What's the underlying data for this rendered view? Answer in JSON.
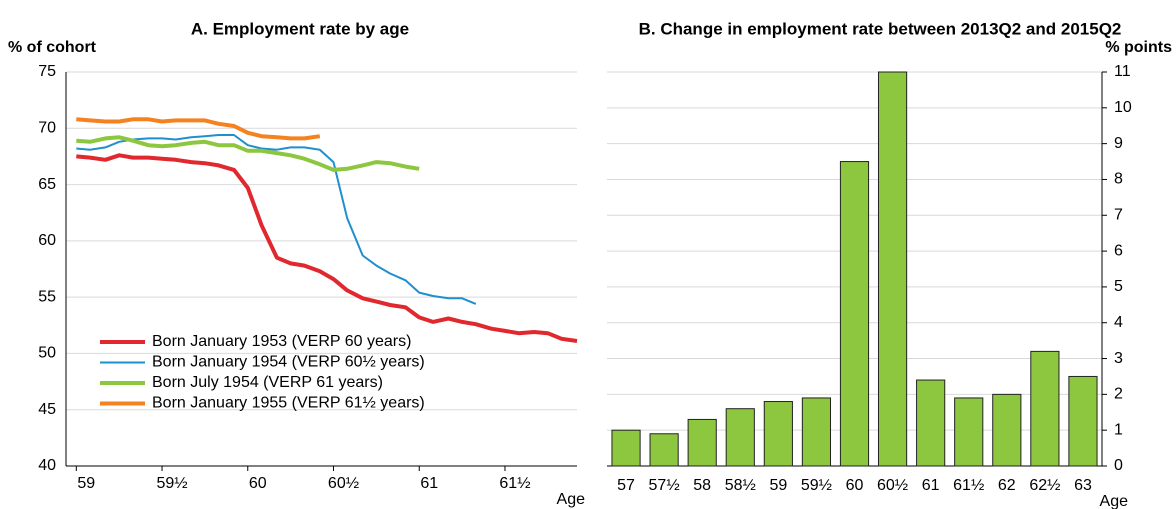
{
  "chart_data": [
    {
      "type": "line",
      "title": "A. Employment rate by age",
      "ylabel": "% of cohort",
      "xlabel": "Age",
      "x": [
        59,
        59.08,
        59.17,
        59.25,
        59.33,
        59.42,
        59.5,
        59.58,
        59.67,
        59.75,
        59.83,
        59.92,
        60,
        60.08,
        60.17,
        60.25,
        60.33,
        60.42,
        60.5,
        60.58,
        60.67,
        60.75,
        60.83,
        60.92,
        61,
        61.08,
        61.17,
        61.25,
        61.33,
        61.42,
        61.5,
        61.58,
        61.67,
        61.75,
        61.83,
        61.92
      ],
      "xlim": [
        58.94,
        61.92
      ],
      "xticks": [
        59,
        {
          "value": 59.5,
          "label": "59½"
        },
        60,
        {
          "value": 60.5,
          "label": "60½"
        },
        61,
        {
          "value": 61.5,
          "label": "61½"
        }
      ],
      "ylim": [
        40,
        75
      ],
      "yticks": [
        40,
        45,
        50,
        55,
        60,
        65,
        70,
        75
      ],
      "grid": true,
      "legend": "lower left",
      "series": [
        {
          "name": "Born January 1953 (VERP 60 years)",
          "color": "#e0282e",
          "values": [
            67.5,
            67.4,
            67.2,
            67.6,
            67.4,
            67.4,
            67.3,
            67.2,
            67.0,
            66.9,
            66.7,
            66.3,
            64.7,
            61.4,
            58.5,
            58.0,
            57.8,
            57.3,
            56.6,
            55.6,
            54.9,
            54.6,
            54.3,
            54.1,
            53.2,
            52.8,
            53.1,
            52.8,
            52.6,
            52.2,
            52.0,
            51.8,
            51.9,
            51.8,
            51.3,
            51.1
          ]
        },
        {
          "name": "Born January 1954 (VERP 60½ years)",
          "color": "#1f8fce",
          "values": [
            68.2,
            68.1,
            68.3,
            68.8,
            69.0,
            69.1,
            69.1,
            69.0,
            69.2,
            69.3,
            69.4,
            69.4,
            68.5,
            68.2,
            68.1,
            68.3,
            68.3,
            68.1,
            67.0,
            62.0,
            58.7,
            57.8,
            57.1,
            56.5,
            55.4,
            55.1,
            54.9,
            54.9,
            54.4,
            null,
            null,
            null,
            null,
            null,
            null,
            null
          ]
        },
        {
          "name": "Born July 1954 (VERP 61 years)",
          "color": "#8dc63f",
          "values": [
            68.9,
            68.8,
            69.1,
            69.2,
            68.9,
            68.5,
            68.4,
            68.5,
            68.7,
            68.8,
            68.5,
            68.5,
            68.0,
            68.0,
            67.8,
            67.6,
            67.3,
            66.8,
            66.3,
            66.4,
            66.7,
            67.0,
            66.9,
            66.6,
            66.4,
            null,
            null,
            null,
            null,
            null,
            null,
            null,
            null,
            null,
            null,
            null
          ]
        },
        {
          "name": "Born January 1955 (VERP 61½ years)",
          "color": "#f58220",
          "values": [
            70.8,
            70.7,
            70.6,
            70.6,
            70.8,
            70.8,
            70.6,
            70.7,
            70.7,
            70.7,
            70.4,
            70.2,
            69.6,
            69.3,
            69.2,
            69.1,
            69.1,
            69.3,
            null,
            null,
            null,
            null,
            null,
            null,
            null,
            null,
            null,
            null,
            null,
            null,
            null,
            null,
            null,
            null,
            null,
            null
          ]
        }
      ]
    },
    {
      "type": "bar",
      "title": "B. Change in employment rate between 2013Q2 and 2015Q2",
      "ylabel": "% points",
      "xlabel": "Age",
      "categories": [
        "57",
        "57½",
        "58",
        "58½",
        "59",
        "59½",
        "60",
        "60½",
        "61",
        "61½",
        "62",
        "62½",
        "63"
      ],
      "values": [
        1.0,
        0.9,
        1.3,
        1.6,
        1.8,
        1.9,
        8.5,
        11.0,
        2.4,
        1.9,
        2.0,
        3.2,
        2.5
      ],
      "color": "#8dc63f",
      "ylim": [
        0,
        11
      ],
      "yticks": [
        0,
        1,
        2,
        3,
        4,
        5,
        6,
        7,
        8,
        9,
        10,
        11
      ],
      "grid": true,
      "yaxis_position": "right"
    }
  ]
}
